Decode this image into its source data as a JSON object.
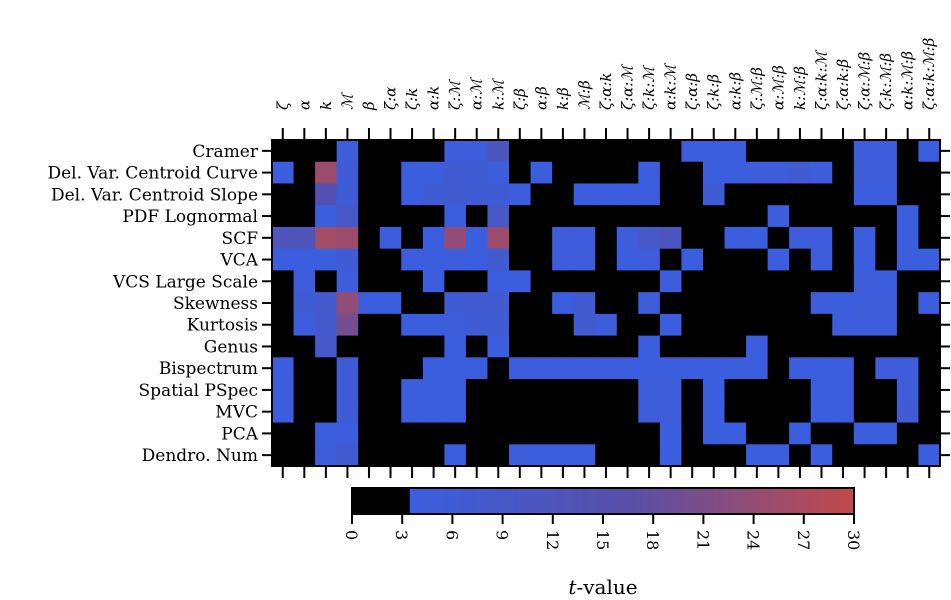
{
  "chart_data": {
    "type": "heatmap",
    "title": "",
    "rows": [
      "Cramer",
      "Del. Var. Centroid Curve",
      "Del. Var. Centroid Slope",
      "PDF Lognormal",
      "SCF",
      "VCA",
      "VCS Large Scale",
      "Skewness",
      "Kurtosis",
      "Genus",
      "Bispectrum",
      "Spatial PSpec",
      "MVC",
      "PCA",
      "Dendro. Num"
    ],
    "columns": [
      "ζ",
      "α",
      "k",
      "ℳ",
      "β",
      "ζ:α",
      "ζ:k",
      "α:k",
      "ζ:ℳ",
      "α:ℳ",
      "k:ℳ",
      "ζ:β",
      "α:β",
      "k:β",
      "ℳ:β",
      "ζ:α:k",
      "ζ:α:ℳ",
      "ζ:k:ℳ",
      "α:k:ℳ",
      "ζ:α:β",
      "ζ:k:β",
      "α:k:β",
      "ζ:ℳ:β",
      "α:ℳ:β",
      "k:ℳ:β",
      "ζ:α:k:ℳ",
      "ζ:α:k:β",
      "ζ:α:ℳ:β",
      "ζ:k:ℳ:β",
      "α:k:ℳ:β",
      "ζ:α:k:ℳ:β"
    ],
    "values": [
      [
        0,
        0,
        0,
        5,
        0,
        0,
        0,
        0,
        5,
        5,
        11,
        0,
        0,
        0,
        0,
        0,
        0,
        0,
        0,
        4,
        4,
        4,
        0,
        0,
        0,
        0,
        0,
        5,
        5,
        0,
        4
      ],
      [
        4,
        0,
        25,
        6,
        0,
        0,
        4,
        4,
        7,
        6,
        5,
        0,
        4,
        0,
        0,
        0,
        0,
        4,
        0,
        0,
        4,
        4,
        5,
        5,
        6,
        5,
        0,
        5,
        5,
        0,
        0
      ],
      [
        0,
        0,
        14,
        6,
        0,
        0,
        4,
        6,
        7,
        6,
        6,
        4,
        0,
        0,
        4,
        4,
        4,
        4,
        0,
        0,
        6,
        0,
        0,
        0,
        0,
        0,
        0,
        4,
        4,
        0,
        0
      ],
      [
        0,
        0,
        4,
        9,
        0,
        0,
        0,
        0,
        4,
        0,
        9,
        0,
        0,
        0,
        0,
        0,
        0,
        0,
        0,
        0,
        0,
        0,
        0,
        4,
        0,
        0,
        0,
        0,
        0,
        4,
        0
      ],
      [
        12,
        12,
        26,
        25,
        0,
        4,
        0,
        4,
        24,
        4,
        25,
        0,
        0,
        5,
        5,
        0,
        5,
        9,
        11,
        0,
        0,
        4,
        4,
        0,
        5,
        5,
        0,
        4,
        0,
        4,
        0
      ],
      [
        4,
        4,
        4,
        6,
        0,
        0,
        4,
        4,
        5,
        4,
        7,
        0,
        0,
        5,
        5,
        0,
        4,
        5,
        0,
        4,
        0,
        0,
        0,
        4,
        0,
        5,
        0,
        4,
        0,
        4,
        4
      ],
      [
        0,
        5,
        0,
        5,
        0,
        0,
        0,
        4,
        0,
        0,
        4,
        4,
        0,
        0,
        0,
        0,
        0,
        0,
        4,
        0,
        0,
        0,
        0,
        0,
        0,
        0,
        0,
        5,
        4,
        0,
        0
      ],
      [
        0,
        6,
        8,
        24,
        4,
        4,
        0,
        0,
        6,
        7,
        7,
        0,
        0,
        4,
        7,
        0,
        0,
        5,
        0,
        0,
        0,
        0,
        0,
        0,
        0,
        5,
        4,
        5,
        5,
        0,
        4
      ],
      [
        0,
        5,
        8,
        20,
        0,
        0,
        4,
        4,
        5,
        6,
        6,
        0,
        0,
        0,
        7,
        5,
        0,
        0,
        4,
        0,
        0,
        0,
        0,
        0,
        0,
        0,
        5,
        5,
        5,
        0,
        0
      ],
      [
        0,
        0,
        9,
        0,
        0,
        0,
        0,
        0,
        4,
        0,
        4,
        0,
        0,
        0,
        0,
        0,
        0,
        4,
        0,
        0,
        0,
        0,
        4,
        0,
        0,
        0,
        0,
        0,
        0,
        0,
        0
      ],
      [
        4,
        0,
        0,
        6,
        0,
        0,
        0,
        4,
        4,
        4,
        0,
        4,
        4,
        4,
        4,
        4,
        4,
        4,
        4,
        4,
        4,
        4,
        4,
        0,
        4,
        4,
        4,
        0,
        5,
        5,
        0
      ],
      [
        4,
        0,
        0,
        6,
        0,
        0,
        4,
        4,
        4,
        0,
        0,
        0,
        0,
        0,
        0,
        0,
        0,
        5,
        5,
        0,
        4,
        0,
        0,
        0,
        0,
        4,
        4,
        0,
        0,
        5,
        0
      ],
      [
        4,
        0,
        0,
        6,
        0,
        0,
        4,
        4,
        4,
        0,
        0,
        0,
        0,
        0,
        0,
        0,
        0,
        5,
        5,
        0,
        4,
        0,
        0,
        0,
        0,
        4,
        4,
        0,
        0,
        6,
        0
      ],
      [
        0,
        0,
        4,
        4,
        0,
        0,
        0,
        0,
        0,
        0,
        0,
        0,
        0,
        0,
        0,
        0,
        0,
        0,
        4,
        0,
        4,
        4,
        0,
        0,
        4,
        0,
        0,
        4,
        4,
        0,
        0
      ],
      [
        0,
        0,
        5,
        7,
        0,
        0,
        0,
        0,
        4,
        0,
        0,
        5,
        4,
        4,
        4,
        0,
        0,
        0,
        4,
        0,
        0,
        0,
        4,
        4,
        0,
        4,
        0,
        0,
        0,
        0,
        4
      ]
    ],
    "colorbar": {
      "title": "t-value",
      "ticks": [
        0,
        3,
        6,
        9,
        12,
        15,
        18,
        21,
        24,
        27,
        30
      ],
      "range": [
        0,
        30
      ],
      "threshold": 3.5,
      "colors": {
        "zero": "#000000",
        "low": "#3a5fe0",
        "mid": "#5a4fa8",
        "high": "#c24a4a"
      }
    }
  }
}
